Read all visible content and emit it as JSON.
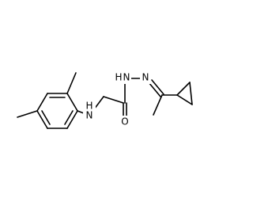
{
  "atoms": [
    "H",
    "N",
    "O",
    "H",
    "N",
    "N"
  ]
}
